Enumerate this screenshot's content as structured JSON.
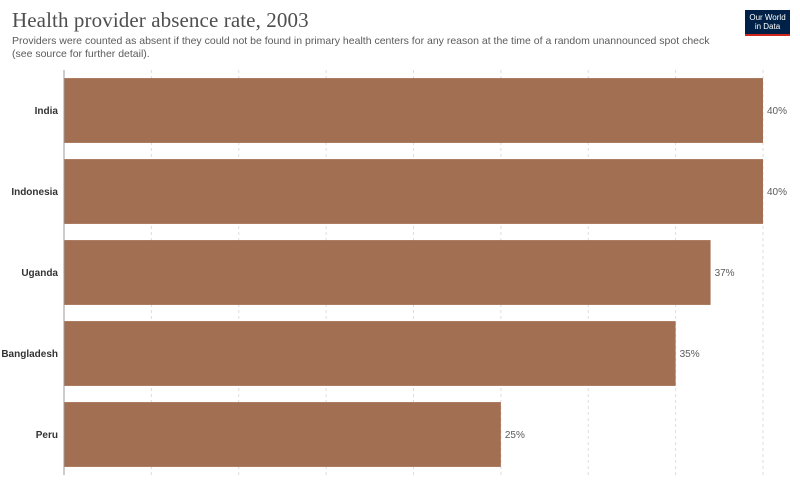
{
  "header": {
    "title": "Health provider absence rate, 2003",
    "subtitle": "Providers were counted as absent if they could not be found in primary health centers for any reason at the time of a random unannounced spot check (see source for further detail).",
    "logo_line1": "Our World",
    "logo_line2": "in Data"
  },
  "colors": {
    "bar": "#a36f52",
    "grid": "#dddddd",
    "axis": "#999999",
    "label": "#333333",
    "value": "#5b5b5b"
  },
  "chart_data": {
    "type": "bar",
    "orientation": "horizontal",
    "categories": [
      "India",
      "Indonesia",
      "Uganda",
      "Bangladesh",
      "Peru"
    ],
    "values": [
      40,
      40,
      37,
      35,
      25
    ],
    "value_labels": [
      "40%",
      "40%",
      "37%",
      "35%",
      "25%"
    ],
    "unit": "%",
    "xlim": [
      0,
      40
    ],
    "grid": true
  }
}
